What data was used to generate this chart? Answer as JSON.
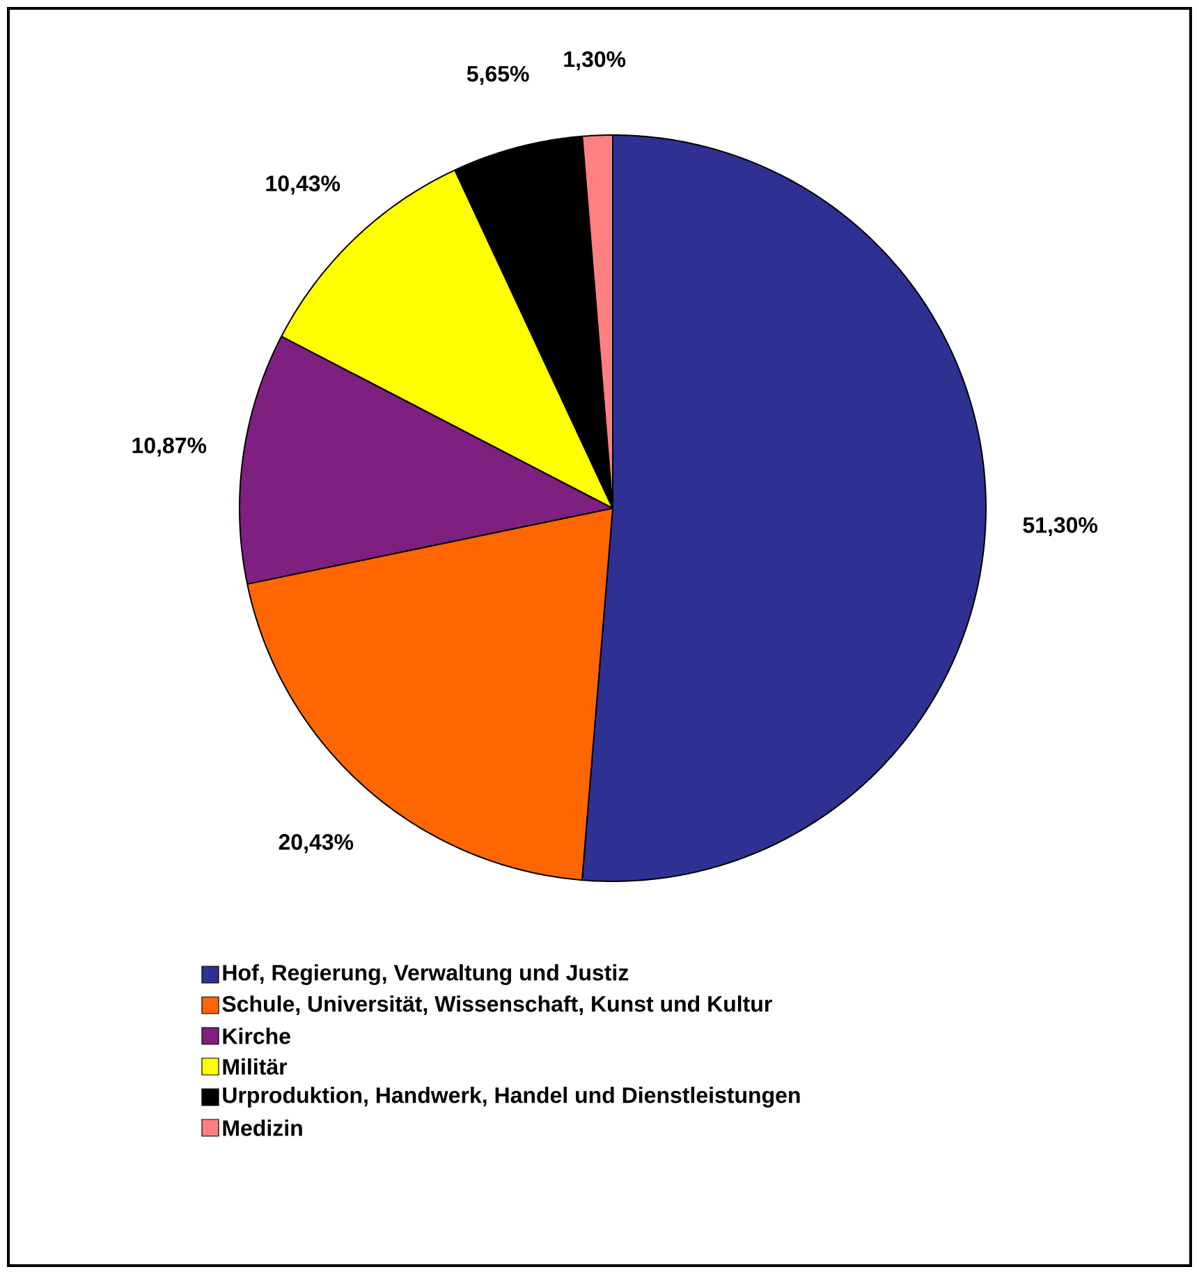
{
  "chart_data": {
    "type": "pie",
    "categories": [
      "Hof, Regierung, Verwaltung und Justiz",
      "Schule, Universität, Wissenschaft, Kunst und Kultur",
      "Kirche",
      "Militär",
      "Urproduktion, Handwerk, Handel und Dienstleistungen",
      "Medizin"
    ],
    "values": [
      51.3,
      20.43,
      10.87,
      10.43,
      5.65,
      1.3
    ],
    "value_labels": [
      "51,30%",
      "20,43%",
      "10,87%",
      "10,43%",
      "5,65%",
      "1,30%"
    ],
    "colors": [
      "#2e3192",
      "#ff6600",
      "#7f1f7f",
      "#ffff00",
      "#000000",
      "#ff8080"
    ],
    "legend": "bottom"
  }
}
